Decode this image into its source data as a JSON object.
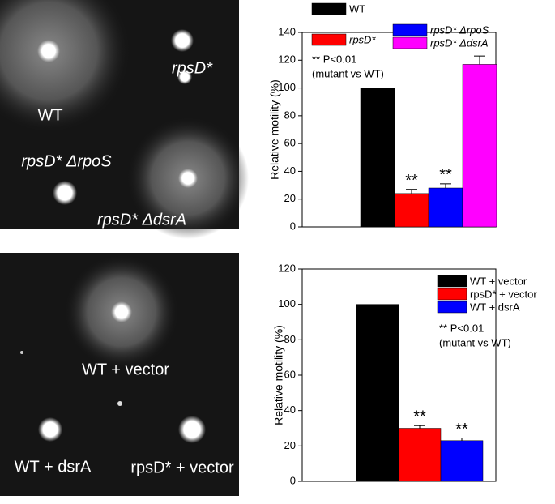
{
  "chart_data": [
    {
      "type": "bar",
      "y_label": "Relative motility (%)",
      "ylim": [
        0,
        140
      ],
      "yticks": [
        0,
        20,
        40,
        60,
        80,
        100,
        120,
        140
      ],
      "annotations": [
        "** P<0.01",
        "(mutant vs WT)"
      ],
      "series": [
        {
          "name": "WT",
          "color": "#000000",
          "values": [
            100
          ]
        },
        {
          "name": "rpsD*",
          "color": "#ff0000",
          "values": [
            24
          ],
          "errors": [
            3
          ],
          "significance": "**"
        },
        {
          "name": "rpsD* ΔrpoS",
          "color": "#0000ff",
          "values": [
            28
          ],
          "errors": [
            3
          ],
          "significance": "**"
        },
        {
          "name": "rpsD* ΔdsrA",
          "color": "#ff00ff",
          "values": [
            117
          ],
          "errors": [
            6
          ]
        }
      ]
    },
    {
      "type": "bar",
      "y_label": "Relative motility (%)",
      "ylim": [
        0,
        120
      ],
      "yticks": [
        0,
        20,
        40,
        60,
        80,
        100,
        120
      ],
      "annotations": [
        "** P<0.01",
        "(mutant vs WT)"
      ],
      "series": [
        {
          "name": "WT + vector",
          "color": "#000000",
          "values": [
            100
          ]
        },
        {
          "name": "rpsD* + vector",
          "color": "#ff0000",
          "values": [
            30
          ],
          "errors": [
            1.5
          ],
          "significance": "**"
        },
        {
          "name": "WT + dsrA",
          "color": "#0000ff",
          "values": [
            23
          ],
          "errors": [
            1.5
          ],
          "significance": "**"
        }
      ]
    }
  ],
  "photos": [
    {
      "labels": [
        "WT",
        "rpsD*",
        "rpsD* ΔrpoS",
        "rpsD* ΔdsrA"
      ]
    },
    {
      "labels": [
        "WT + vector",
        "WT + dsrA",
        "rpsD* + vector"
      ]
    }
  ]
}
